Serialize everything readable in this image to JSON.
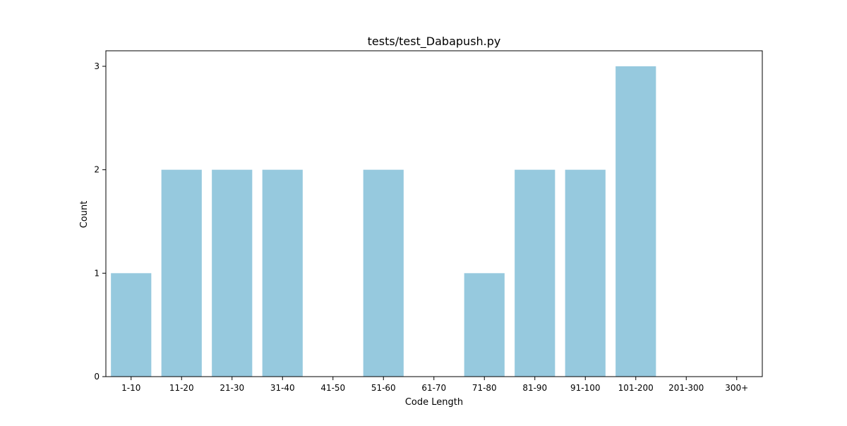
{
  "chart_data": {
    "type": "bar",
    "title": "tests/test_Dabapush.py",
    "xlabel": "Code Length",
    "ylabel": "Count",
    "categories": [
      "1-10",
      "11-20",
      "21-30",
      "31-40",
      "41-50",
      "51-60",
      "61-70",
      "71-80",
      "81-90",
      "91-100",
      "101-200",
      "201-300",
      "300+"
    ],
    "values": [
      1,
      2,
      2,
      2,
      0,
      2,
      0,
      1,
      2,
      2,
      3,
      0,
      0
    ],
    "ylim": [
      0,
      3.15
    ],
    "yticks": [
      0,
      1,
      2,
      3
    ],
    "grid": false,
    "legend": "none",
    "bar_color": "#96c9de"
  }
}
